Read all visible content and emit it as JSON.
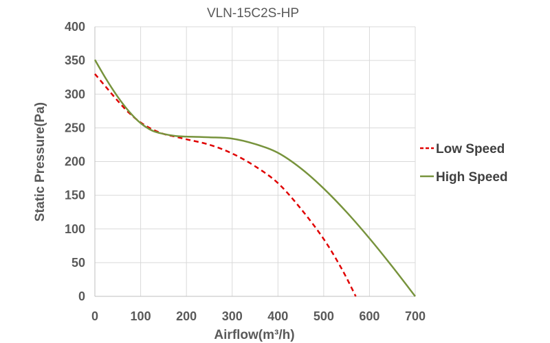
{
  "chart_data": {
    "type": "line",
    "title": "VLN-15C2S-HP",
    "xlabel": "Airflow(m³/h)",
    "ylabel": "Static Pressure(Pa)",
    "xlim": [
      0,
      700
    ],
    "ylim": [
      0,
      400
    ],
    "xticks": [
      0,
      100,
      200,
      300,
      400,
      500,
      600,
      700
    ],
    "yticks": [
      0,
      50,
      100,
      150,
      200,
      250,
      300,
      350,
      400
    ],
    "grid": true,
    "legend_position": "right",
    "series": [
      {
        "name": "Low Speed",
        "color": "#e00000",
        "dash": "dashed",
        "x": [
          0,
          25,
          50,
          75,
          100,
          125,
          150,
          175,
          200,
          250,
          300,
          350,
          400,
          450,
          500,
          540,
          570
        ],
        "y": [
          330,
          310,
          290,
          272,
          258,
          248,
          241,
          237,
          233,
          225,
          212,
          193,
          168,
          130,
          85,
          40,
          0
        ]
      },
      {
        "name": "High Speed",
        "color": "#77933c",
        "dash": "solid",
        "x": [
          0,
          25,
          50,
          75,
          100,
          125,
          150,
          175,
          200,
          250,
          300,
          350,
          400,
          450,
          500,
          550,
          600,
          650,
          700
        ],
        "y": [
          351,
          322,
          296,
          274,
          257,
          246,
          241,
          238,
          237,
          236,
          234,
          226,
          213,
          190,
          160,
          125,
          86,
          44,
          0
        ]
      }
    ]
  }
}
